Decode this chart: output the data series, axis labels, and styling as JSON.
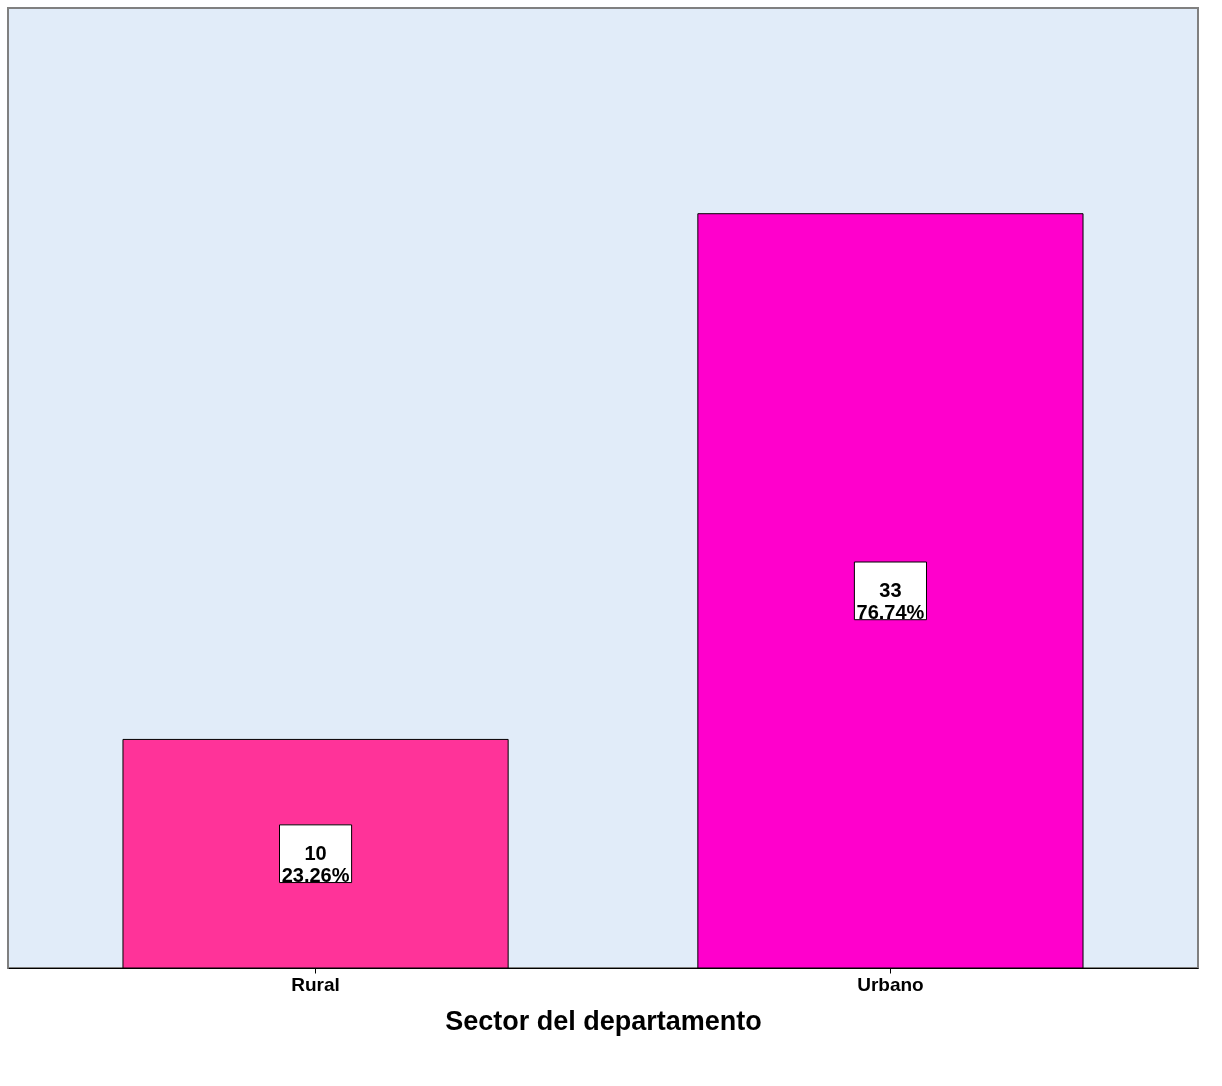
{
  "chart_data": {
    "type": "bar",
    "xlabel": "Sector del departamento",
    "categories": [
      "Rural",
      "Urbano"
    ],
    "values": [
      10,
      33
    ],
    "colors": [
      "#ff3399",
      "#ff00cc"
    ],
    "value_labels": [
      "10\n23.26%",
      "33\n76.74%"
    ],
    "ylim": [
      0,
      42
    ],
    "tick_labels": "x",
    "grid": false
  }
}
